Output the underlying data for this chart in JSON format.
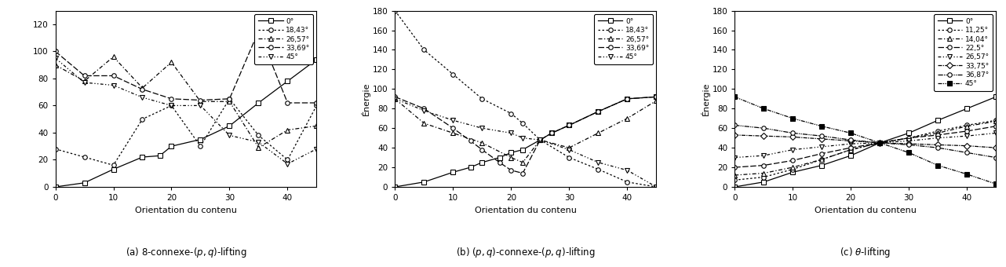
{
  "fig_width": 12.82,
  "fig_height": 3.4,
  "subplot_a": {
    "ylabel": "",
    "xlabel": "Orientation du contenu",
    "xlim": [
      0,
      45
    ],
    "ylim": [
      0,
      130
    ],
    "yticks": [
      0,
      20,
      40,
      60,
      80,
      100,
      120
    ],
    "xticks": [
      0,
      10,
      20,
      30,
      40
    ],
    "series": [
      {
        "label": "0°",
        "x": [
          0,
          5,
          10,
          15,
          18,
          20,
          25,
          30,
          35,
          40,
          45
        ],
        "y": [
          0,
          3,
          13,
          22,
          23,
          30,
          35,
          45,
          62,
          78,
          94
        ],
        "linestyle": "-",
        "marker": "s",
        "markerfacecolor": "white",
        "color": "black"
      },
      {
        "label": "18,43°",
        "x": [
          0,
          5,
          10,
          15,
          20,
          25,
          30,
          35,
          40,
          45
        ],
        "y": [
          28,
          22,
          16,
          50,
          60,
          30,
          65,
          38,
          20,
          60
        ],
        "linestyle": ":",
        "marker": "o",
        "markerfacecolor": "white",
        "color": "black",
        "dashes": [
          2,
          2
        ]
      },
      {
        "label": "26,57°",
        "x": [
          0,
          5,
          10,
          15,
          20,
          25,
          30,
          35,
          40,
          45
        ],
        "y": [
          90,
          78,
          96,
          73,
          92,
          63,
          63,
          29,
          42,
          45
        ],
        "linestyle": "--",
        "marker": "^",
        "markerfacecolor": "white",
        "color": "black",
        "dashes": [
          4,
          2,
          1,
          2
        ]
      },
      {
        "label": "33,69°",
        "x": [
          0,
          5,
          10,
          15,
          20,
          25,
          30,
          35,
          40,
          45
        ],
        "y": [
          100,
          82,
          82,
          72,
          65,
          64,
          65,
          115,
          62,
          62
        ],
        "linestyle": "--",
        "marker": "o",
        "markerfacecolor": "white",
        "color": "black",
        "dashes": [
          6,
          2
        ]
      },
      {
        "label": "45°",
        "x": [
          0,
          5,
          10,
          15,
          20,
          25,
          30,
          35,
          40,
          45
        ],
        "y": [
          95,
          77,
          75,
          66,
          60,
          60,
          38,
          33,
          17,
          28
        ],
        "linestyle": "-.",
        "marker": "v",
        "markerfacecolor": "white",
        "color": "black",
        "dashes": [
          3,
          2,
          1,
          2,
          1,
          2
        ]
      }
    ]
  },
  "subplot_b": {
    "ylabel": "Énergie",
    "xlabel": "Orientation du contenu",
    "xlim": [
      0,
      45
    ],
    "ylim": [
      0,
      180
    ],
    "yticks": [
      0,
      20,
      40,
      60,
      80,
      100,
      120,
      140,
      160,
      180
    ],
    "xticks": [
      0,
      10,
      20,
      30,
      40
    ],
    "series": [
      {
        "label": "0°",
        "x": [
          0,
          5,
          10,
          13,
          15,
          18,
          20,
          22,
          25,
          27,
          30,
          35,
          40,
          45
        ],
        "y": [
          0,
          5,
          15,
          20,
          25,
          30,
          35,
          38,
          48,
          55,
          63,
          77,
          90,
          92
        ],
        "linestyle": "-",
        "marker": "s",
        "markerfacecolor": "white",
        "color": "black"
      },
      {
        "label": "18,43°",
        "x": [
          0,
          5,
          10,
          15,
          20,
          22,
          25,
          30,
          35,
          40,
          45
        ],
        "y": [
          180,
          140,
          115,
          90,
          75,
          65,
          48,
          30,
          18,
          5,
          0
        ],
        "linestyle": ":",
        "marker": "o",
        "markerfacecolor": "white",
        "color": "black",
        "dashes": [
          2,
          2
        ]
      },
      {
        "label": "26,57°",
        "x": [
          0,
          5,
          10,
          15,
          20,
          22,
          25,
          30,
          35,
          40,
          45
        ],
        "y": [
          90,
          65,
          55,
          45,
          30,
          25,
          48,
          40,
          55,
          70,
          88
        ],
        "linestyle": "--",
        "marker": "^",
        "markerfacecolor": "white",
        "color": "black",
        "dashes": [
          4,
          2,
          1,
          2
        ]
      },
      {
        "label": "33,69°",
        "x": [
          0,
          5,
          10,
          13,
          15,
          18,
          20,
          22,
          25,
          27,
          30,
          35,
          40,
          45
        ],
        "y": [
          92,
          80,
          60,
          47,
          38,
          25,
          17,
          14,
          48,
          55,
          63,
          77,
          90,
          92
        ],
        "linestyle": "--",
        "marker": "o",
        "markerfacecolor": "white",
        "color": "black",
        "dashes": [
          6,
          2
        ]
      },
      {
        "label": "45°",
        "x": [
          0,
          5,
          10,
          15,
          20,
          22,
          25,
          30,
          35,
          40,
          45
        ],
        "y": [
          90,
          78,
          68,
          60,
          55,
          50,
          48,
          38,
          25,
          17,
          0
        ],
        "linestyle": "-.",
        "marker": "v",
        "markerfacecolor": "white",
        "color": "black",
        "dashes": [
          3,
          2,
          1,
          2,
          1,
          2
        ]
      }
    ]
  },
  "subplot_c": {
    "ylabel": "Énergie",
    "xlabel": "Orientation du contenu",
    "xlim": [
      0,
      45
    ],
    "ylim": [
      0,
      180
    ],
    "yticks": [
      0,
      20,
      40,
      60,
      80,
      100,
      120,
      140,
      160,
      180
    ],
    "xticks": [
      0,
      10,
      20,
      30,
      40
    ],
    "series": [
      {
        "label": "0°",
        "x": [
          0,
          5,
          10,
          15,
          20,
          25,
          30,
          35,
          40,
          45
        ],
        "y": [
          0,
          5,
          15,
          22,
          32,
          45,
          55,
          68,
          80,
          92
        ],
        "linestyle": "-",
        "marker": "s",
        "markerfacecolor": "white",
        "color": "black"
      },
      {
        "label": "11,25°",
        "x": [
          0,
          5,
          10,
          15,
          20,
          25,
          30,
          35,
          40,
          45
        ],
        "y": [
          7,
          10,
          18,
          28,
          38,
          45,
          50,
          57,
          63,
          68
        ],
        "linestyle": ":",
        "marker": "o",
        "markerfacecolor": "white",
        "color": "black",
        "dashes": [
          2,
          2
        ]
      },
      {
        "label": "14,04°",
        "x": [
          0,
          5,
          10,
          15,
          20,
          25,
          30,
          35,
          40,
          45
        ],
        "y": [
          12,
          14,
          20,
          28,
          38,
          45,
          50,
          55,
          62,
          67
        ],
        "linestyle": "--",
        "marker": "^",
        "markerfacecolor": "white",
        "color": "black",
        "dashes": [
          4,
          2,
          1,
          2
        ]
      },
      {
        "label": "22,5°",
        "x": [
          0,
          5,
          10,
          15,
          20,
          25,
          30,
          35,
          40,
          45
        ],
        "y": [
          20,
          22,
          27,
          34,
          40,
          45,
          50,
          53,
          57,
          62
        ],
        "linestyle": "--",
        "marker": "o",
        "markerfacecolor": "white",
        "color": "black",
        "dashes": [
          6,
          2
        ]
      },
      {
        "label": "26,57°",
        "x": [
          0,
          5,
          10,
          15,
          20,
          25,
          30,
          35,
          40,
          45
        ],
        "y": [
          30,
          32,
          38,
          41,
          44,
          45,
          47,
          50,
          52,
          55
        ],
        "linestyle": "-.",
        "marker": "v",
        "markerfacecolor": "white",
        "color": "black",
        "dashes": [
          3,
          2,
          1,
          2,
          1,
          2
        ]
      },
      {
        "label": "33,75°",
        "x": [
          0,
          5,
          10,
          15,
          20,
          25,
          30,
          35,
          40,
          45
        ],
        "y": [
          53,
          52,
          51,
          49,
          47,
          45,
          44,
          43,
          42,
          40
        ],
        "linestyle": "--",
        "marker": "D",
        "markerfacecolor": "white",
        "color": "black",
        "dashes": [
          4,
          1,
          1,
          1
        ]
      },
      {
        "label": "36,87°",
        "x": [
          0,
          5,
          10,
          15,
          20,
          25,
          30,
          35,
          40,
          45
        ],
        "y": [
          63,
          60,
          55,
          52,
          48,
          45,
          43,
          40,
          35,
          30
        ],
        "linestyle": "-.",
        "marker": "o",
        "markerfacecolor": "white",
        "color": "black",
        "dashes": [
          5,
          1,
          1,
          1,
          1,
          1
        ]
      },
      {
        "label": "45°",
        "x": [
          0,
          5,
          10,
          15,
          20,
          25,
          30,
          35,
          40,
          45
        ],
        "y": [
          92,
          80,
          70,
          62,
          55,
          45,
          35,
          22,
          13,
          3
        ],
        "linestyle": "--",
        "marker": "s",
        "markerfacecolor": "black",
        "color": "black",
        "dashes": [
          4,
          1,
          1,
          1,
          1,
          1
        ]
      }
    ]
  },
  "caption_a": "(a) 8-connexe-$(p, q)$-lifting",
  "caption_b": "(b) $(p, q)$-connexe-$(p, q)$-lifting",
  "caption_c": "(c) $\\theta$-lifting"
}
